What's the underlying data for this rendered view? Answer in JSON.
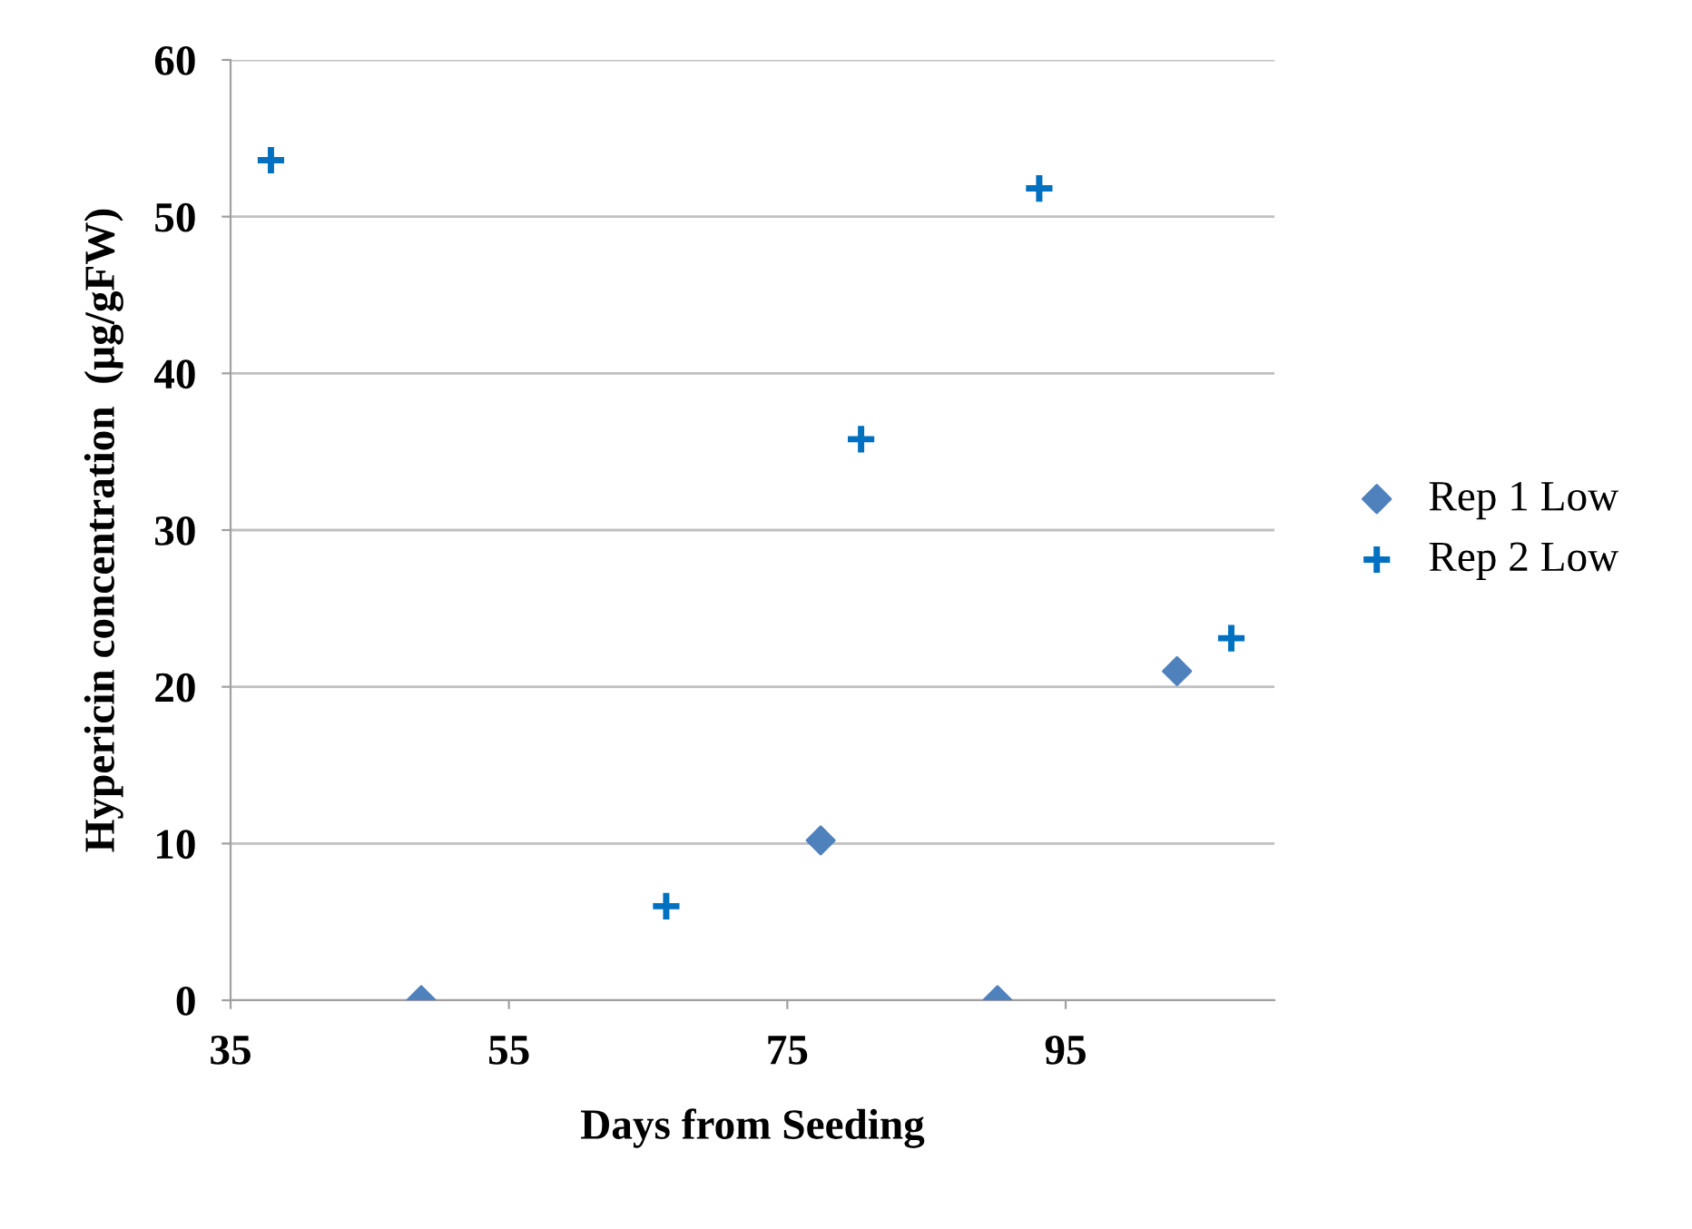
{
  "chart_data": {
    "type": "scatter",
    "xlabel": "Days from Seeding",
    "ylabel": "Hypericin concentration  (µg/gFW)",
    "xlim": [
      35,
      110
    ],
    "xticks": [
      35,
      55,
      75,
      95
    ],
    "ylim": [
      0,
      60
    ],
    "yticks": [
      0,
      10,
      20,
      30,
      40,
      50,
      60
    ],
    "grid": "y",
    "legend": "right",
    "series": [
      {
        "name": "Rep 1 Low",
        "color": "#4f81bd",
        "marker": "diamond",
        "x": [
          48.7,
          77.4,
          90.1,
          103.0
        ],
        "values": [
          0,
          10.2,
          0,
          21.0
        ]
      },
      {
        "name": "Rep 2 Low",
        "color": "#0070c0",
        "marker": "cross",
        "x": [
          37.9,
          66.3,
          80.3,
          93.1,
          106.9
        ],
        "values": [
          53.6,
          6.0,
          35.8,
          51.8,
          23.1
        ]
      }
    ]
  }
}
